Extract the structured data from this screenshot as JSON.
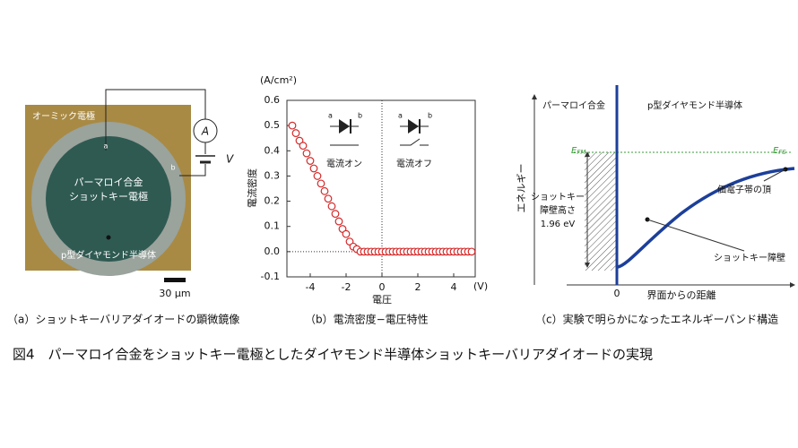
{
  "figure_caption": "図4　パーマロイ合金をショットキー電極としたダイヤモンド半導体ショットキーバリアダイオードの実現",
  "panel_a": {
    "caption": "（a）ショットキーバリアダイオードの顕微鏡像",
    "ohmic": "オーミック電極",
    "electrode_line1": "パーマロイ合金",
    "electrode_line2": "ショットキー電極",
    "semiconductor": "p型ダイヤモンド半導体",
    "ammeter": "A",
    "voltage": "V",
    "terminal_a": "a",
    "terminal_b": "b",
    "scale": "30 μm"
  },
  "chart_data": {
    "type": "scatter",
    "y_unit": "(A/cm²)",
    "x_unit": "(V)",
    "ylabel": "電流密度",
    "xlabel": "電圧",
    "caption": "（b）電流密度−電圧特性",
    "inset_on": {
      "a": "a",
      "b": "b",
      "label": "電流オン"
    },
    "inset_off": {
      "a": "a",
      "b": "b",
      "label": "電流オフ"
    },
    "x": [
      -5.0,
      -4.8,
      -4.6,
      -4.4,
      -4.2,
      -4.0,
      -3.8,
      -3.6,
      -3.4,
      -3.2,
      -3.0,
      -2.8,
      -2.6,
      -2.4,
      -2.2,
      -2.0,
      -1.8,
      -1.6,
      -1.4,
      -1.2,
      -1.0,
      -0.8,
      -0.6,
      -0.4,
      -0.2,
      0.0,
      0.2,
      0.4,
      0.6,
      0.8,
      1.0,
      1.2,
      1.4,
      1.6,
      1.8,
      2.0,
      2.2,
      2.4,
      2.6,
      2.8,
      3.0,
      3.2,
      3.4,
      3.6,
      3.8,
      4.0,
      4.2,
      4.4,
      4.6,
      4.8,
      5.0
    ],
    "series": [
      {
        "color": "#d42a2a",
        "values": [
          0.5,
          0.47,
          0.44,
          0.42,
          0.39,
          0.36,
          0.33,
          0.3,
          0.27,
          0.24,
          0.21,
          0.18,
          0.15,
          0.12,
          0.09,
          0.07,
          0.04,
          0.02,
          0.01,
          0.0,
          0,
          0,
          0,
          0,
          0,
          0,
          0,
          0,
          0,
          0,
          0,
          0,
          0,
          0,
          0,
          0,
          0,
          0,
          0,
          0,
          0,
          0,
          0,
          0,
          0,
          0,
          0,
          0,
          0,
          0,
          0
        ]
      }
    ],
    "xlim": [
      -5.3,
      5.2
    ],
    "ylim": [
      -0.1,
      0.6
    ],
    "xticks": [
      -4,
      -2,
      0,
      2,
      4
    ],
    "yticks": [
      -0.1,
      {
        "value": 0,
        "label": "0.0"
      },
      0.1,
      0.2,
      0.3,
      0.4,
      0.5,
      0.6
    ]
  },
  "panel_c": {
    "caption": "（c）実験で明らかになったエネルギーバンド構造",
    "metal": "パーマロイ合金",
    "semiconductor": "p型ダイヤモンド半導体",
    "efm": {
      "main": "E",
      "sub": "FM"
    },
    "efs": {
      "main": "E",
      "sub": "FS"
    },
    "energy": "エネルギー",
    "barrier_line1": "ショットキー",
    "barrier_line2": "障壁高さ",
    "barrier_line3": "1.96 eV",
    "valence_top": "価電子帯の頂",
    "barrier": "ショットキー障壁",
    "origin": "0",
    "distance": "界面からの距離"
  }
}
